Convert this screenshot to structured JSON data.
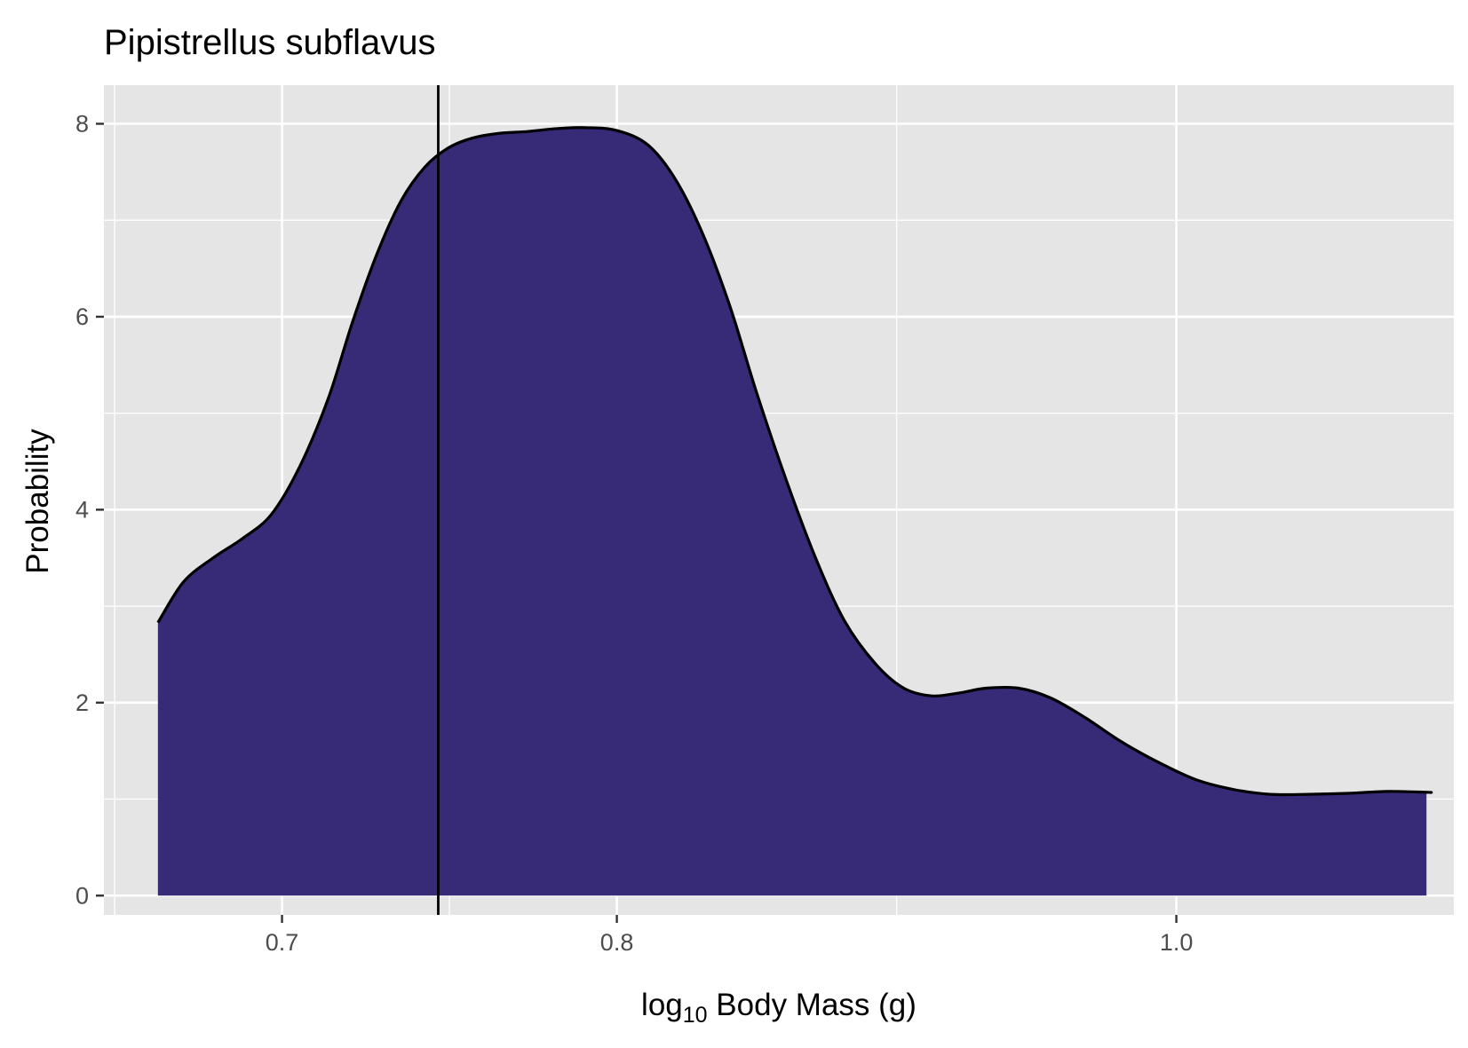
{
  "chart_data": {
    "type": "area",
    "title": "Pipistrellus subflavus",
    "xlabel": {
      "base": "log",
      "subscript": "10",
      "rest": " Body Mass (g)"
    },
    "ylabel": "Probability",
    "x_scale": "log10",
    "xlim": [
      0.652,
      1.117
    ],
    "ylim": [
      -0.2,
      8.4
    ],
    "x_ticks": [
      0.7,
      0.8,
      1.0
    ],
    "x_tick_labels": [
      "0.7",
      "0.8",
      "1.0"
    ],
    "y_ticks": [
      0,
      2,
      4,
      6,
      8
    ],
    "y_tick_labels": [
      "0",
      "2",
      "4",
      "6",
      "8"
    ],
    "grid": true,
    "fill_color": "#372a76",
    "line_color": "#000000",
    "panel_background": "#e5e5e5",
    "vline_x": 0.745,
    "series": [
      {
        "x": [
          0.6662,
          0.673,
          0.681,
          0.689,
          0.697,
          0.705,
          0.713,
          0.72,
          0.727,
          0.734,
          0.741,
          0.748,
          0.755,
          0.763,
          0.772,
          0.781,
          0.79,
          0.8,
          0.81,
          0.819,
          0.828,
          0.837,
          0.846,
          0.856,
          0.866,
          0.876,
          0.887,
          0.897,
          0.907,
          0.917,
          0.927,
          0.939,
          0.951,
          0.964,
          0.978,
          0.993,
          1.008,
          1.023,
          1.038,
          1.054,
          1.071,
          1.088,
          1.106,
          1.1049
        ],
        "y": [
          2.83,
          3.25,
          3.5,
          3.7,
          3.95,
          4.45,
          5.15,
          5.95,
          6.65,
          7.2,
          7.55,
          7.75,
          7.85,
          7.9,
          7.92,
          7.95,
          7.96,
          7.93,
          7.78,
          7.42,
          6.85,
          6.1,
          5.2,
          4.3,
          3.5,
          2.85,
          2.4,
          2.15,
          2.07,
          2.1,
          2.15,
          2.15,
          2.05,
          1.85,
          1.6,
          1.38,
          1.2,
          1.1,
          1.05,
          1.05,
          1.06,
          1.08,
          1.07,
          1.07
        ]
      }
    ]
  }
}
